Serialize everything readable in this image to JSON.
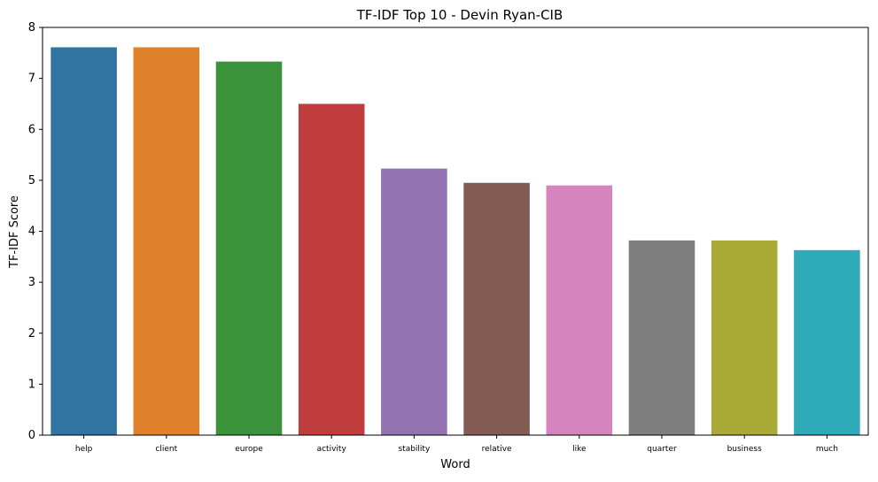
{
  "chart_data": {
    "type": "bar",
    "title": "TF-IDF Top 10 - Devin Ryan-CIB",
    "xlabel": "Word",
    "ylabel": "TF-IDF Score",
    "ylim": [
      0,
      8
    ],
    "yticks": [
      "0",
      "1",
      "2",
      "3",
      "4",
      "5",
      "6",
      "7",
      "8"
    ],
    "grid": false,
    "legend": "none",
    "categories": [
      "help",
      "client",
      "europe",
      "activity",
      "stability",
      "relative",
      "like",
      "quarter",
      "business",
      "much"
    ],
    "values": [
      7.61,
      7.61,
      7.33,
      6.5,
      5.23,
      4.95,
      4.9,
      3.82,
      3.82,
      3.63
    ],
    "colors": [
      "#3274a1",
      "#e1812c",
      "#3a923a",
      "#c03d3e",
      "#9372b2",
      "#845b53",
      "#d684bd",
      "#7f7f7f",
      "#a9aa35",
      "#2eaab8"
    ]
  }
}
